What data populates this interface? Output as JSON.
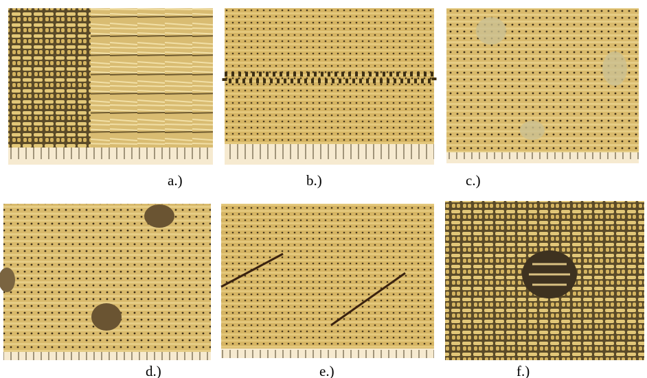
{
  "panels": [
    {
      "label": "a.)"
    },
    {
      "label": "b.)"
    },
    {
      "label": "c.)"
    },
    {
      "label": "d.)"
    },
    {
      "label": "e.)"
    },
    {
      "label": "f.)"
    }
  ]
}
